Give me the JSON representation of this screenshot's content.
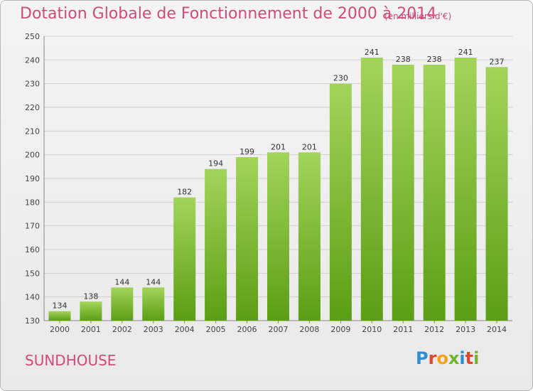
{
  "header": {
    "title": "Dotation Globale de Fonctionnement de 2000 à 2014",
    "unit": "(en milliers d'€)"
  },
  "footer": {
    "city": "SUNDHOUSE",
    "logo_text": "Proxiti",
    "logo_letters": [
      {
        "ch": "P",
        "color": "#2e8fd6"
      },
      {
        "ch": "r",
        "color": "#e2452b"
      },
      {
        "ch": "o",
        "color": "#f4a21c"
      },
      {
        "ch": "x",
        "color": "#6fb42c"
      },
      {
        "ch": "i",
        "color": "#2e8fd6"
      },
      {
        "ch": "t",
        "color": "#e2452b"
      },
      {
        "ch": "i",
        "color": "#6fb42c"
      }
    ]
  },
  "colors": {
    "bar_light": "#a3d45a",
    "bar_dark": "#5b9e14",
    "accent": "#d04a7c",
    "grid": "#cfcfcf"
  },
  "chart_data": {
    "type": "bar",
    "title": "Dotation Globale de Fonctionnement de 2000 à 2014",
    "subtitle": "(en milliers d'€)",
    "categories": [
      "2000",
      "2001",
      "2002",
      "2003",
      "2004",
      "2005",
      "2006",
      "2007",
      "2008",
      "2009",
      "2010",
      "2011",
      "2012",
      "2013",
      "2014"
    ],
    "values": [
      134,
      138,
      144,
      144,
      182,
      194,
      199,
      201,
      201,
      230,
      241,
      238,
      238,
      241,
      237
    ],
    "ylim": [
      130,
      250
    ],
    "yticks": [
      130,
      140,
      150,
      160,
      170,
      180,
      190,
      200,
      210,
      220,
      230,
      240,
      250
    ],
    "grid": true,
    "data_labels": true
  }
}
